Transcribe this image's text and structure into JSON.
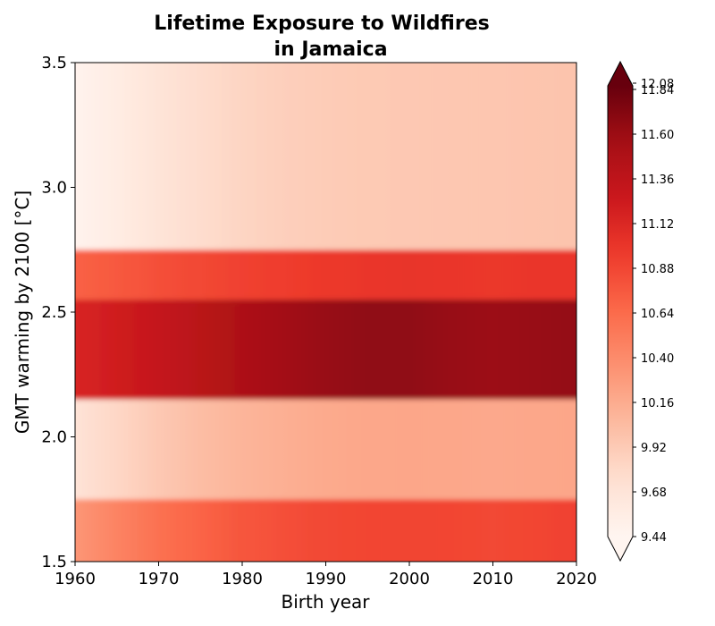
{
  "chart_data": {
    "type": "heatmap",
    "title_line1": "Lifetime Exposure to Wildfires",
    "title_line2": "in Jamaica",
    "xlabel": "Birth year",
    "ylabel": "GMT warming by 2100 [°C]",
    "xlim": [
      1960,
      2020
    ],
    "ylim": [
      1.5,
      3.5
    ],
    "x_ticks": [
      1960,
      1970,
      1980,
      1990,
      2000,
      2010,
      2020
    ],
    "y_ticks": [
      "1.5",
      "2.0",
      "2.5",
      "3.0",
      "3.5"
    ],
    "colorbar": {
      "colormap": "Reds",
      "extend": "both",
      "range": [
        9.44,
        12.08
      ],
      "ticks": [
        "9.44",
        "9.68",
        "9.92",
        "10.16",
        "10.40",
        "10.64",
        "10.88",
        "11.12",
        "11.36",
        "11.60",
        "11.84",
        "12.08"
      ]
    },
    "x_birth_years": [
      1960,
      1965,
      1970,
      1975,
      1980,
      1985,
      1990,
      1995,
      2000,
      2005,
      2010,
      2015,
      2020
    ],
    "rows": [
      {
        "gmt_from": 1.5,
        "gmt_to": 1.75,
        "values": [
          10.4,
          10.55,
          10.7,
          10.8,
          10.9,
          10.95,
          11.0,
          11.02,
          11.03,
          11.02,
          11.0,
          11.02,
          11.05
        ]
      },
      {
        "gmt_from": 1.75,
        "gmt_to": 2.15,
        "values": [
          9.72,
          9.85,
          9.98,
          10.08,
          10.15,
          10.2,
          10.24,
          10.26,
          10.27,
          10.26,
          10.25,
          10.26,
          10.27
        ]
      },
      {
        "gmt_from": 2.15,
        "gmt_to": 2.55,
        "values": [
          11.3,
          11.38,
          11.48,
          11.58,
          11.68,
          11.76,
          11.82,
          11.86,
          11.86,
          11.82,
          11.8,
          11.82,
          11.84
        ]
      },
      {
        "gmt_from": 2.55,
        "gmt_to": 2.75,
        "values": [
          10.82,
          10.88,
          10.95,
          11.0,
          11.05,
          11.08,
          11.12,
          11.14,
          11.15,
          11.14,
          11.13,
          11.14,
          11.14
        ]
      },
      {
        "gmt_from": 2.75,
        "gmt_to": 3.5,
        "values": [
          9.47,
          9.58,
          9.7,
          9.8,
          9.87,
          9.92,
          9.95,
          9.97,
          9.98,
          9.99,
          10.0,
          10.01,
          10.02
        ]
      }
    ]
  }
}
